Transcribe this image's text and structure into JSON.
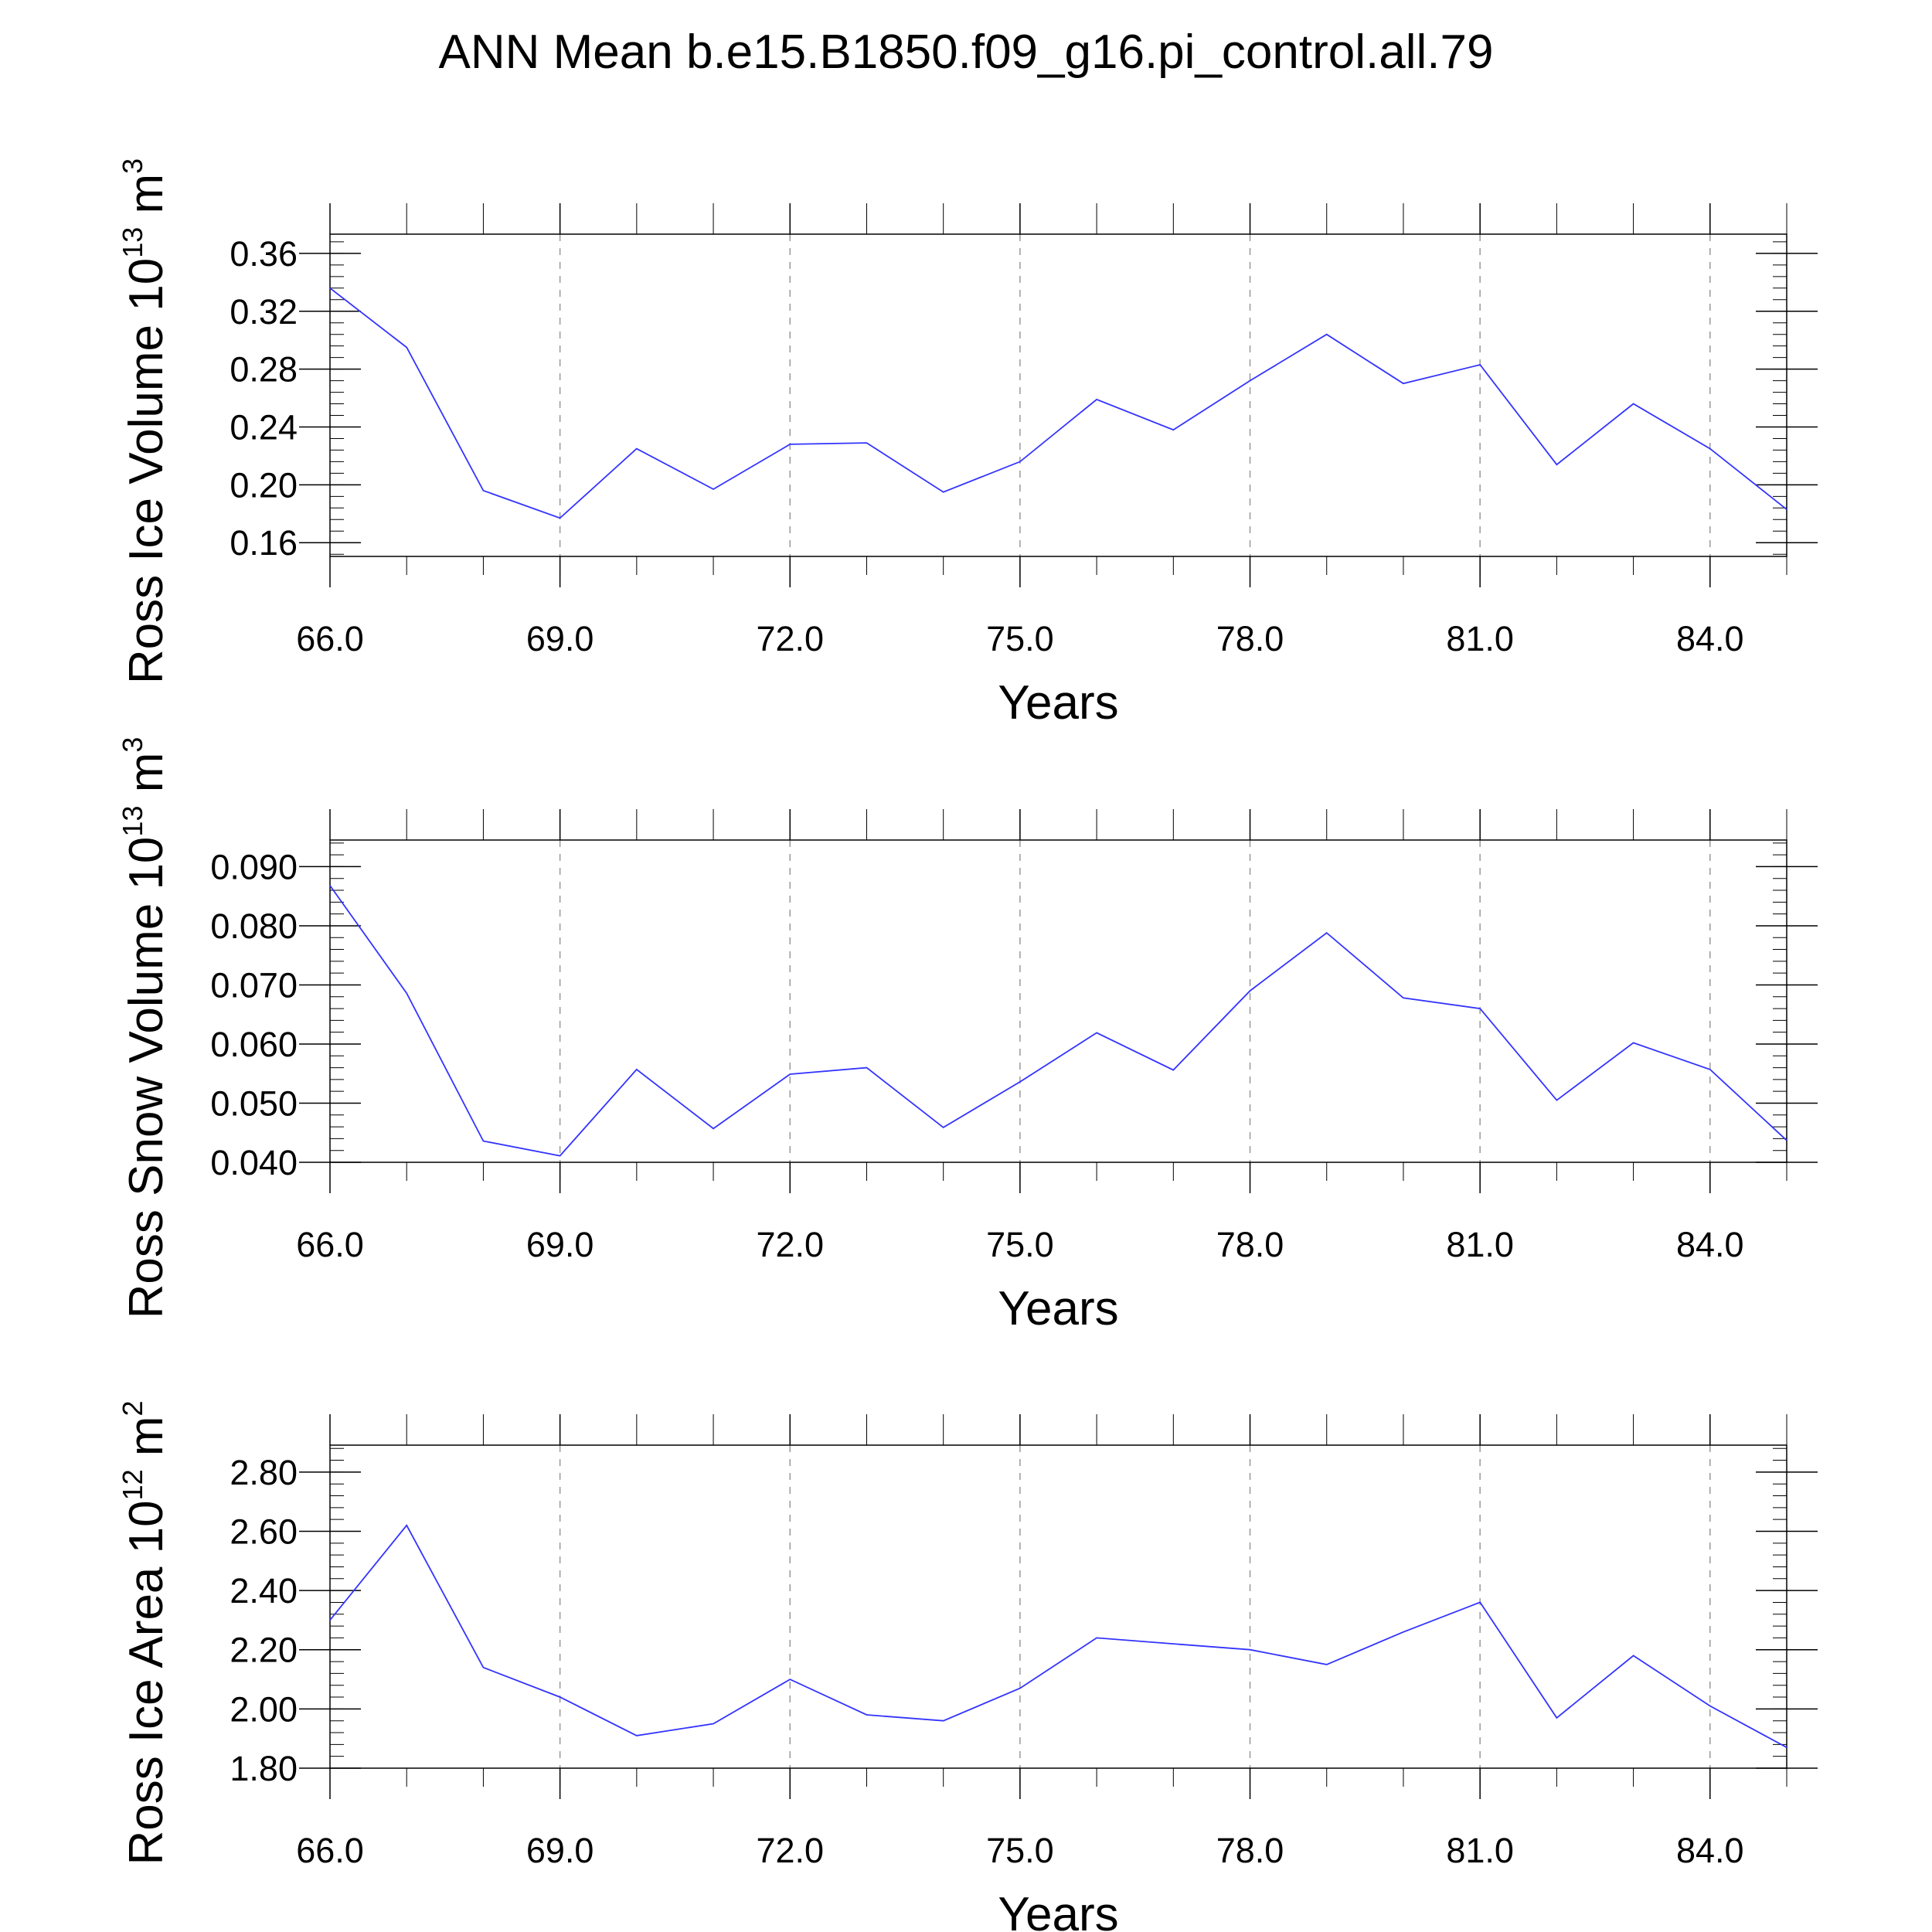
{
  "title": "ANN Mean b.e15.B1850.f09_g16.pi_control.all.79",
  "line_color": "#3333ff",
  "chart_data": [
    {
      "type": "line",
      "ylabel": {
        "text": "Ross Ice Volume 10",
        "sup": "13",
        "unit": " m",
        "unit_sup": "3"
      },
      "xlabel": "Years",
      "xlim": [
        66,
        85
      ],
      "ylim": [
        0.1505,
        0.3733
      ],
      "x_ticks": [
        66,
        69,
        72,
        75,
        78,
        81,
        84
      ],
      "x_tick_labels": [
        "66.0",
        "69.0",
        "72.0",
        "75.0",
        "78.0",
        "81.0",
        "84.0"
      ],
      "y_ticks": [
        0.16,
        0.2,
        0.24,
        0.28,
        0.32,
        0.36
      ],
      "y_tick_labels": [
        "0.16",
        "0.20",
        "0.24",
        "0.28",
        "0.32",
        "0.36"
      ],
      "x": [
        66,
        67,
        68,
        69,
        70,
        71,
        72,
        73,
        74,
        75,
        76,
        77,
        78,
        79,
        80,
        81,
        82,
        83,
        84,
        85
      ],
      "values": [
        0.336,
        0.295,
        0.196,
        0.177,
        0.225,
        0.197,
        0.228,
        0.229,
        0.195,
        0.216,
        0.259,
        0.238,
        0.272,
        0.304,
        0.27,
        0.283,
        0.214,
        0.256,
        0.225,
        0.183
      ]
    },
    {
      "type": "line",
      "ylabel": {
        "text": "Ross Snow Volume 10",
        "sup": "13",
        "unit": " m",
        "unit_sup": "3"
      },
      "xlabel": "Years",
      "xlim": [
        66,
        85
      ],
      "ylim": [
        0.04,
        0.0945
      ],
      "x_ticks": [
        66,
        69,
        72,
        75,
        78,
        81,
        84
      ],
      "x_tick_labels": [
        "66.0",
        "69.0",
        "72.0",
        "75.0",
        "78.0",
        "81.0",
        "84.0"
      ],
      "y_ticks": [
        0.04,
        0.05,
        0.06,
        0.07,
        0.08,
        0.09
      ],
      "y_tick_labels": [
        "0.040",
        "0.050",
        "0.060",
        "0.070",
        "0.080",
        "0.090"
      ],
      "x": [
        66,
        67,
        68,
        69,
        70,
        71,
        72,
        73,
        74,
        75,
        76,
        77,
        78,
        79,
        80,
        81,
        82,
        83,
        84,
        85
      ],
      "values": [
        0.0868,
        0.0686,
        0.0436,
        0.0411,
        0.0557,
        0.0457,
        0.0549,
        0.056,
        0.0459,
        0.0536,
        0.0619,
        0.0556,
        0.069,
        0.0788,
        0.0678,
        0.066,
        0.0505,
        0.0602,
        0.0557,
        0.0437
      ]
    },
    {
      "type": "line",
      "ylabel": {
        "text": "Ross Ice Area 10",
        "sup": "12",
        "unit": " m",
        "unit_sup": "2"
      },
      "xlabel": "Years",
      "xlim": [
        66,
        85
      ],
      "ylim": [
        1.8,
        2.891
      ],
      "x_ticks": [
        66,
        69,
        72,
        75,
        78,
        81,
        84
      ],
      "x_tick_labels": [
        "66.0",
        "69.0",
        "72.0",
        "75.0",
        "78.0",
        "81.0",
        "84.0"
      ],
      "y_ticks": [
        1.8,
        2.0,
        2.2,
        2.4,
        2.6,
        2.8
      ],
      "y_tick_labels": [
        "1.80",
        "2.00",
        "2.20",
        "2.40",
        "2.60",
        "2.80"
      ],
      "x": [
        66,
        67,
        68,
        69,
        70,
        71,
        72,
        73,
        74,
        75,
        76,
        77,
        78,
        79,
        80,
        81,
        82,
        83,
        84,
        85
      ],
      "values": [
        2.3,
        2.62,
        2.14,
        2.04,
        1.91,
        1.95,
        2.1,
        1.98,
        1.96,
        2.07,
        2.24,
        2.22,
        2.2,
        2.15,
        2.26,
        2.36,
        1.97,
        2.18,
        2.01,
        1.87
      ]
    }
  ]
}
